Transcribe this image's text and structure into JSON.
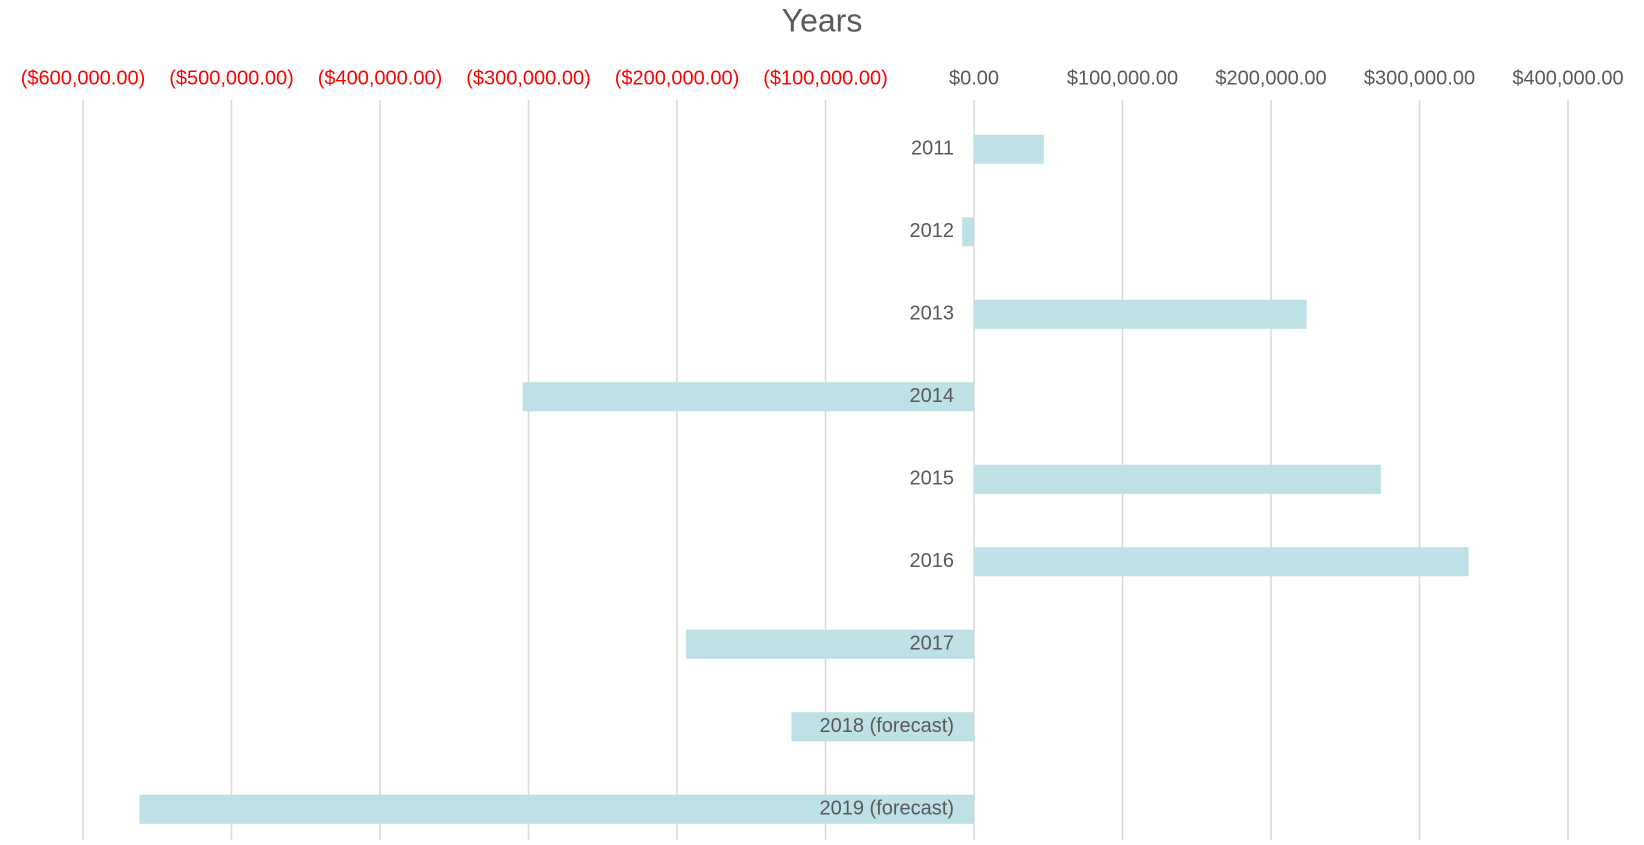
{
  "chart_data": {
    "type": "barh",
    "title": "Years",
    "categories": [
      "2011",
      "2012",
      "2013",
      "2014",
      "2015",
      "2016",
      "2017",
      "2018 (forecast)",
      "2019 (forecast)"
    ],
    "values": [
      47000,
      -8000,
      224000,
      -304000,
      274000,
      333000,
      -194000,
      -123000,
      -562000
    ],
    "color": "#bde1e4",
    "xlim": [
      -600000,
      400000
    ],
    "xticks": [
      {
        "value": -600000,
        "label": "($600,000.00)"
      },
      {
        "value": -500000,
        "label": "($500,000.00)"
      },
      {
        "value": -400000,
        "label": "($400,000.00)"
      },
      {
        "value": -300000,
        "label": "($300,000.00)"
      },
      {
        "value": -200000,
        "label": "($200,000.00)"
      },
      {
        "value": -100000,
        "label": "($100,000.00)"
      },
      {
        "value": 0,
        "label": "$0.00"
      },
      {
        "value": 100000,
        "label": "$100,000.00"
      },
      {
        "value": 200000,
        "label": "$200,000.00"
      },
      {
        "value": 300000,
        "label": "$300,000.00"
      },
      {
        "value": 400000,
        "label": "$400,000.00"
      }
    ],
    "negative_tick_color": "#ff0000",
    "tick_color": "#595959",
    "grid": true
  }
}
